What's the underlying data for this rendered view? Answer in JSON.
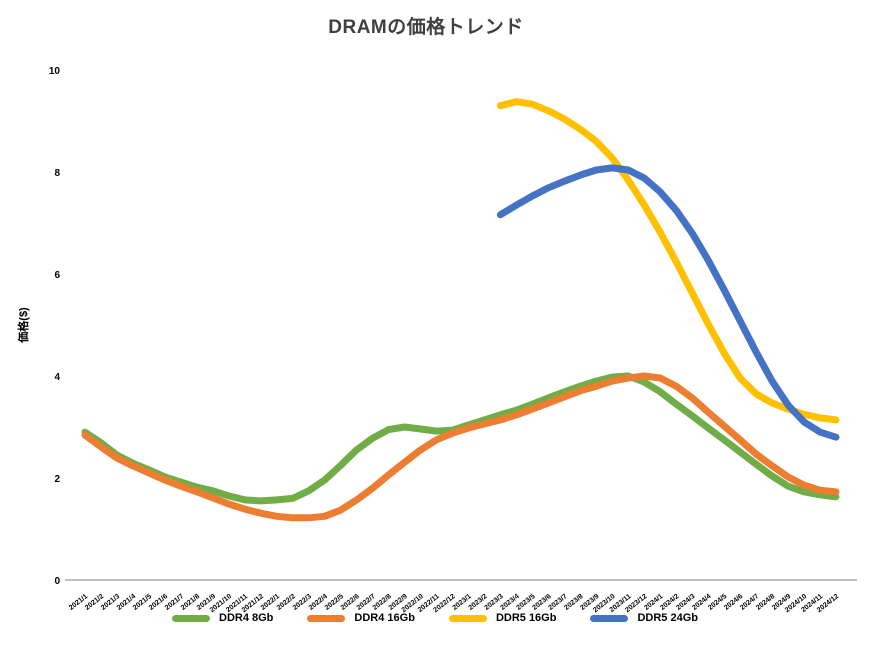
{
  "chart_data": {
    "type": "line",
    "title": "DRAMの価格トレンド",
    "ylabel": "価格($)",
    "xlabel": "",
    "ylim": [
      0,
      10
    ],
    "yticks": [
      0,
      2,
      4,
      6,
      8,
      10
    ],
    "ytick_labels": [
      "0",
      "2",
      "4",
      "6",
      "8",
      "10"
    ],
    "axis_color": "#BFBFBF",
    "grid": false,
    "legend_position": "bottom",
    "x_labels": [
      "2021/1",
      "2021/2",
      "2021/3",
      "2021/4",
      "2021/5",
      "2021/6",
      "2021/7",
      "2021/8",
      "2021/9",
      "2021/10",
      "2021/11",
      "2021/12",
      "2022/1",
      "2022/2",
      "2022/3",
      "2022/4",
      "2022/5",
      "2022/6",
      "2022/7",
      "2022/8",
      "2022/9",
      "2022/10",
      "2022/11",
      "2022/12",
      "2023/1",
      "2023/2",
      "2023/3",
      "2023/4",
      "2023/5",
      "2023/6",
      "2023/7",
      "2023/8",
      "2023/9",
      "2023/10",
      "2023/11",
      "2023/12",
      "2024/1",
      "2024/2",
      "2024/3",
      "2024/4",
      "2024/5",
      "2024/6",
      "2024/7",
      "2024/8",
      "2024/9",
      "2024/10",
      "2024/11",
      "2024/12"
    ],
    "series": [
      {
        "name": "DDR4 8Gb",
        "color": "#70AD47",
        "start": 0,
        "values": [
          2.9,
          2.69,
          2.45,
          2.29,
          2.16,
          2.02,
          1.92,
          1.82,
          1.75,
          1.65,
          1.57,
          1.55,
          1.57,
          1.6,
          1.75,
          1.96,
          2.25,
          2.55,
          2.78,
          2.95,
          3.0,
          2.96,
          2.92,
          2.94,
          3.04,
          3.14,
          3.24,
          3.33,
          3.45,
          3.57,
          3.69,
          3.8,
          3.9,
          3.98,
          4.0,
          3.88,
          3.69,
          3.45,
          3.22,
          2.98,
          2.75,
          2.51,
          2.27,
          2.04,
          1.84,
          1.73,
          1.67,
          1.63
        ]
      },
      {
        "name": "DDR4 16Gb",
        "color": "#ED7D31",
        "start": 0,
        "values": [
          2.84,
          2.61,
          2.39,
          2.24,
          2.1,
          1.96,
          1.84,
          1.73,
          1.61,
          1.49,
          1.39,
          1.31,
          1.25,
          1.22,
          1.22,
          1.25,
          1.37,
          1.57,
          1.8,
          2.06,
          2.31,
          2.55,
          2.75,
          2.88,
          2.98,
          3.06,
          3.14,
          3.24,
          3.35,
          3.47,
          3.59,
          3.71,
          3.8,
          3.9,
          3.96,
          4.0,
          3.96,
          3.8,
          3.57,
          3.29,
          3.02,
          2.75,
          2.47,
          2.24,
          2.02,
          1.86,
          1.76,
          1.73
        ]
      },
      {
        "name": "DDR5 16Gb",
        "color": "#FFC000",
        "start": 26,
        "values": [
          9.3,
          9.38,
          9.33,
          9.2,
          9.04,
          8.84,
          8.6,
          8.27,
          7.84,
          7.35,
          6.82,
          6.24,
          5.63,
          5.02,
          4.45,
          3.96,
          3.65,
          3.47,
          3.35,
          3.25,
          3.18,
          3.14
        ]
      },
      {
        "name": "DDR5 24Gb",
        "color": "#4472C4",
        "start": 26,
        "values": [
          7.16,
          7.35,
          7.53,
          7.69,
          7.82,
          7.94,
          8.04,
          8.08,
          8.04,
          7.88,
          7.61,
          7.25,
          6.8,
          6.27,
          5.69,
          5.08,
          4.47,
          3.9,
          3.43,
          3.1,
          2.9,
          2.8
        ]
      }
    ]
  }
}
